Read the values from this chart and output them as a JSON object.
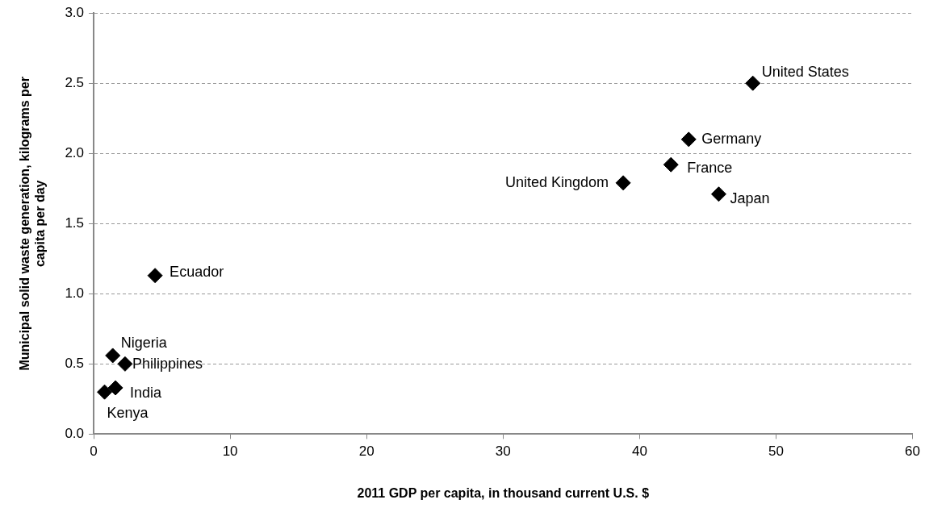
{
  "chart_data": {
    "type": "scatter",
    "xlabel": "2011 GDP per capita, in thousand current U.S. $",
    "ylabel": "Municipal solid waste generation, kilograms per capita per day",
    "x": [
      48.3,
      43.6,
      42.3,
      38.8,
      45.8,
      4.5,
      1.4,
      2.3,
      1.6,
      0.8
    ],
    "values": [
      2.5,
      2.1,
      1.92,
      1.79,
      1.71,
      1.13,
      0.56,
      0.5,
      0.33,
      0.3
    ],
    "color": "#000000",
    "marker": "diamond",
    "xlim": [
      0,
      60
    ],
    "xticks": [
      0,
      10,
      20,
      30,
      40,
      50,
      60
    ],
    "ylim": [
      0,
      3
    ],
    "yticks": [
      {
        "value": 0,
        "label": "0.0"
      },
      {
        "value": 0.5,
        "label": "0.5"
      },
      {
        "value": 1,
        "label": "1.0"
      },
      {
        "value": 1.5,
        "label": "1.5"
      },
      {
        "value": 2,
        "label": "2.0"
      },
      {
        "value": 2.5,
        "label": "2.5"
      },
      {
        "value": 3,
        "label": "3.0"
      }
    ],
    "grid": "y",
    "legend": false,
    "annotations": [
      {
        "text": "United States",
        "x": 48.3,
        "y": 2.5
      },
      {
        "text": "Germany",
        "x": 43.6,
        "y": 2.1
      },
      {
        "text": "France",
        "x": 42.3,
        "y": 1.92
      },
      {
        "text": "United Kingdom",
        "x": 38.8,
        "y": 1.79
      },
      {
        "text": "Japan",
        "x": 45.8,
        "y": 1.71
      },
      {
        "text": "Ecuador",
        "x": 4.5,
        "y": 1.13
      },
      {
        "text": "Nigeria",
        "x": 1.4,
        "y": 0.56
      },
      {
        "text": "Philippines",
        "x": 2.3,
        "y": 0.5
      },
      {
        "text": "India",
        "x": 1.6,
        "y": 0.33
      },
      {
        "text": "Kenya",
        "x": 0.8,
        "y": 0.3
      }
    ]
  }
}
